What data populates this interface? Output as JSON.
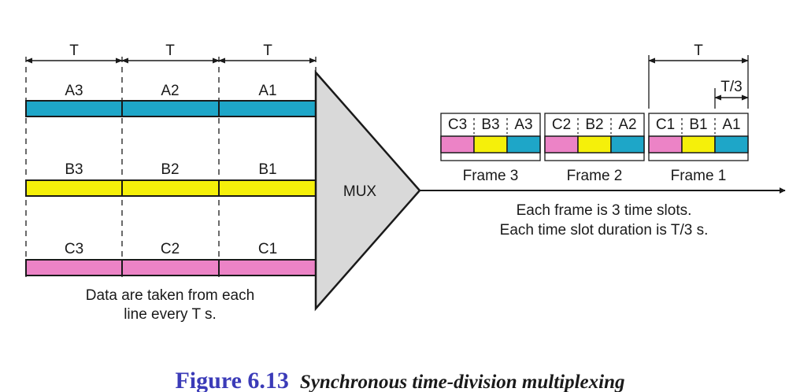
{
  "colors": {
    "a_line": "#1ea6c8",
    "b_line": "#f5f00a",
    "c_line": "#ec83c6",
    "mux_fill": "#d9d9d9",
    "caption_number": "#3b3bb8",
    "stroke": "#1a1a1a"
  },
  "period_labels": [
    "T",
    "T",
    "T"
  ],
  "lines": [
    {
      "id": "a",
      "units": [
        "A3",
        "A2",
        "A1"
      ]
    },
    {
      "id": "b",
      "units": [
        "B3",
        "B2",
        "B1"
      ]
    },
    {
      "id": "c",
      "units": [
        "C3",
        "C2",
        "C1"
      ]
    }
  ],
  "input_note": [
    "Data are taken from each",
    "line every T s."
  ],
  "mux_label": "MUX",
  "frames": [
    {
      "label": "Frame 3",
      "slots": [
        "C3",
        "B3",
        "A3"
      ]
    },
    {
      "label": "Frame 2",
      "slots": [
        "C2",
        "B2",
        "A2"
      ]
    },
    {
      "label": "Frame 1",
      "slots": [
        "C1",
        "B1",
        "A1"
      ]
    }
  ],
  "frame_period_label": "T",
  "slot_duration_label": "T/3",
  "output_note": [
    "Each frame is 3 time slots.",
    "Each time slot duration is T/3 s."
  ],
  "caption": {
    "number": "Figure 6.13",
    "title": "Synchronous time-division multiplexing"
  }
}
